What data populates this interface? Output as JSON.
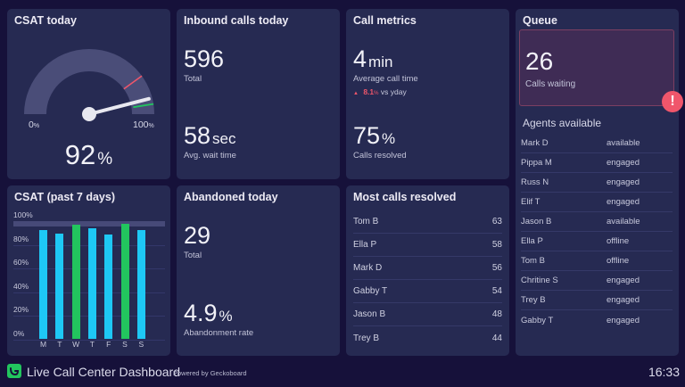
{
  "csat_today": {
    "title": "CSAT today",
    "value": "92",
    "unit": "%",
    "min_label": "0",
    "max_label": "100",
    "label_unit": "%",
    "needle_percent": 92,
    "red_threshold_percent": 80,
    "green_threshold_percent": 95,
    "colors": {
      "arc": "#4a4d78",
      "red": "#f0566b",
      "green": "#22c55e",
      "needle": "#e8e8f0"
    }
  },
  "inbound": {
    "title": "Inbound calls today",
    "total_value": "596",
    "total_label": "Total",
    "wait_value": "58",
    "wait_unit": "sec",
    "wait_label": "Avg. wait time"
  },
  "call_metrics": {
    "title": "Call metrics",
    "avg_value": "4",
    "avg_unit": "min",
    "avg_label": "Average call time",
    "change_arrow": "▲",
    "change_value": "8.1",
    "change_unit": "%",
    "change_label": "vs yday",
    "change_color": "#f0566b",
    "resolved_value": "75",
    "resolved_unit": "%",
    "resolved_label": "Calls resolved"
  },
  "queue": {
    "title": "Queue",
    "waiting_value": "26",
    "waiting_label": "Calls waiting",
    "alert_icon": "!",
    "agents_title": "Agents available",
    "agents": [
      {
        "name": "Mark D",
        "status": "available"
      },
      {
        "name": "Pippa M",
        "status": "engaged"
      },
      {
        "name": "Russ N",
        "status": "engaged"
      },
      {
        "name": "Elif T",
        "status": "engaged"
      },
      {
        "name": "Jason B",
        "status": "available"
      },
      {
        "name": "Ella P",
        "status": "offline"
      },
      {
        "name": "Tom B",
        "status": "offline"
      },
      {
        "name": "Chritine S",
        "status": "engaged"
      },
      {
        "name": "Trey B",
        "status": "engaged"
      },
      {
        "name": "Gabby T",
        "status": "engaged"
      }
    ]
  },
  "csat_week": {
    "title": "CSAT (past 7 days)"
  },
  "chart_data": {
    "type": "bar",
    "title": "CSAT (past 7 days)",
    "categories": [
      "M",
      "T",
      "W",
      "T",
      "F",
      "S",
      "S"
    ],
    "values": [
      92,
      89,
      96,
      93,
      88,
      97,
      92
    ],
    "bar_colors": [
      "#1ec8f5",
      "#1ec8f5",
      "#22c55e",
      "#1ec8f5",
      "#1ec8f5",
      "#22c55e",
      "#1ec8f5"
    ],
    "yticks": [
      "100%",
      "80%",
      "60%",
      "40%",
      "20%",
      "0%"
    ],
    "ylim": [
      0,
      100
    ],
    "threshold_band": [
      95,
      99
    ],
    "xlabel": "",
    "ylabel": "",
    "grid": true,
    "legend": "none"
  },
  "abandoned": {
    "title": "Abandoned today",
    "total_value": "29",
    "total_label": "Total",
    "rate_value": "4.9",
    "rate_unit": "%",
    "rate_label": "Abandonment rate"
  },
  "most_resolved": {
    "title": "Most calls resolved",
    "rows": [
      {
        "name": "Tom B",
        "count": "63"
      },
      {
        "name": "Ella P",
        "count": "58"
      },
      {
        "name": "Mark D",
        "count": "56"
      },
      {
        "name": "Gabby T",
        "count": "54"
      },
      {
        "name": "Jason B",
        "count": "48"
      },
      {
        "name": "Trey B",
        "count": "44"
      }
    ]
  },
  "footer": {
    "title": "Live Call Center Dashboard",
    "powered_by": "Powered by Geckoboard",
    "clock": "16:33",
    "logo_color": "#22c55e"
  }
}
